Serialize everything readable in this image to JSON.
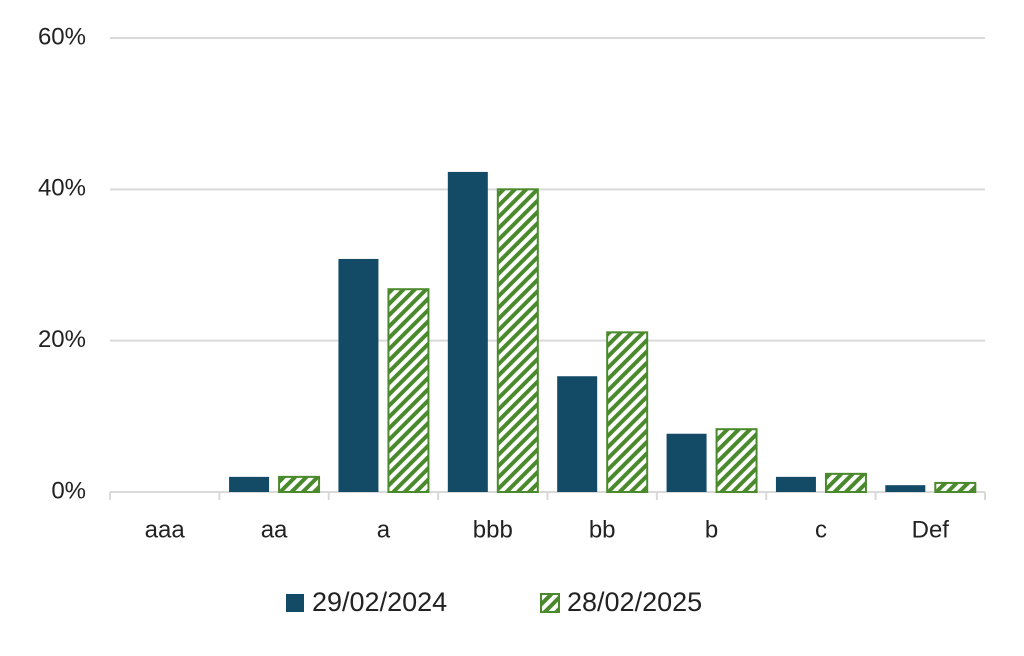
{
  "chart_data": {
    "type": "bar",
    "categories": [
      "aaa",
      "aa",
      "a",
      "bbb",
      "bb",
      "b",
      "c",
      "Def"
    ],
    "series": [
      {
        "name": "29/02/2024",
        "color": "#134a66",
        "values": [
          0,
          2.0,
          30.8,
          42.3,
          15.3,
          7.7,
          2.0,
          0.9
        ]
      },
      {
        "name": "28/02/2025",
        "color": "#4a8a2c",
        "hatch": true,
        "values": [
          0,
          2.0,
          26.8,
          40.0,
          21.1,
          8.3,
          2.4,
          1.2
        ]
      }
    ],
    "ylim": [
      0,
      60
    ],
    "yticks": [
      {
        "value": 0,
        "label": "0%"
      },
      {
        "value": 20,
        "label": "20%"
      },
      {
        "value": 40,
        "label": "40%"
      },
      {
        "value": 60,
        "label": "60%"
      }
    ],
    "grid": true,
    "legend": "bottom"
  }
}
